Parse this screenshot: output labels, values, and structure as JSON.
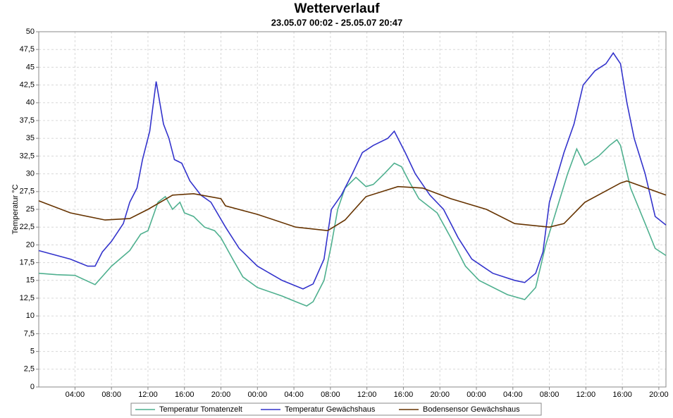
{
  "chart_data": {
    "type": "line",
    "title": "Wetterverlauf",
    "subtitle": "23.05.07 00:02 - 25.05.07 20:47",
    "y_label": "Temperatur  °C",
    "xlim": [
      0.03,
      68.78
    ],
    "ylim": [
      0,
      50
    ],
    "grid": true,
    "legend": "bottom",
    "xticks": [
      {
        "value": 4,
        "label": "04:00"
      },
      {
        "value": 8,
        "label": "08:00"
      },
      {
        "value": 12,
        "label": "12:00"
      },
      {
        "value": 16,
        "label": "16:00"
      },
      {
        "value": 20,
        "label": "20:00"
      },
      {
        "value": 24,
        "label": "00:00"
      },
      {
        "value": 28,
        "label": "04:00"
      },
      {
        "value": 32,
        "label": "08:00"
      },
      {
        "value": 36,
        "label": "12:00"
      },
      {
        "value": 40,
        "label": "16:00"
      },
      {
        "value": 44,
        "label": "20:00"
      },
      {
        "value": 48,
        "label": "00:00"
      },
      {
        "value": 52,
        "label": "04:00"
      },
      {
        "value": 56,
        "label": "08:00"
      },
      {
        "value": 60,
        "label": "12:00"
      },
      {
        "value": 64,
        "label": "16:00"
      },
      {
        "value": 68,
        "label": "20:00"
      }
    ],
    "yticks": [
      0,
      {
        "value": 2.5,
        "label": "2,5"
      },
      5,
      {
        "value": 7.5,
        "label": "7,5"
      },
      10,
      {
        "value": 12.5,
        "label": "12,5"
      },
      15,
      {
        "value": 17.5,
        "label": "17,5"
      },
      20,
      {
        "value": 22.5,
        "label": "22,5"
      },
      25,
      {
        "value": 27.5,
        "label": "27,5"
      },
      30,
      {
        "value": 32.5,
        "label": "32,5"
      },
      35,
      {
        "value": 37.5,
        "label": "37,5"
      },
      40,
      {
        "value": 42.5,
        "label": "42,5"
      },
      45,
      {
        "value": 47.5,
        "label": "47,5"
      },
      50
    ],
    "series": [
      {
        "name": "Temperatur Tomatenzelt",
        "color": "#4fb08f",
        "x": [
          0.03,
          2,
          4,
          6.2,
          8,
          10,
          11.2,
          12,
          13.1,
          13.9,
          14.7,
          15.5,
          16,
          17,
          18.2,
          19.3,
          20,
          21.3,
          22.4,
          24,
          26.7,
          28.2,
          29.4,
          30.1,
          31.3,
          32.1,
          32.8,
          33.6,
          34.8,
          35.9,
          36.7,
          37.9,
          39,
          39.8,
          40.6,
          41.7,
          43.7,
          45.2,
          46.8,
          48.3,
          51.4,
          53.3,
          54.5,
          55.6,
          56.8,
          58,
          59,
          59.9,
          61.4,
          62.6,
          63.4,
          63.8,
          64.9,
          66.5,
          67.6,
          68.78
        ],
        "values": [
          16,
          15.8,
          15.7,
          14.4,
          17,
          19.2,
          21.5,
          22,
          26,
          26.8,
          25,
          26,
          24.5,
          24,
          22.5,
          22,
          21,
          18,
          15.5,
          14,
          12.8,
          12,
          11.4,
          12,
          15,
          20,
          25,
          28,
          29.5,
          28.2,
          28.5,
          30,
          31.5,
          31,
          29,
          26.5,
          24.5,
          21,
          17,
          15,
          13,
          12.3,
          14,
          20,
          25,
          30,
          33.5,
          31.2,
          32.5,
          34,
          34.8,
          34,
          28,
          23,
          19.5,
          18.5
        ]
      },
      {
        "name": "Temperatur Gewächshaus",
        "color": "#3333cc",
        "x": [
          0.03,
          3.5,
          5.4,
          6.2,
          7,
          8,
          9.3,
          10,
          10.8,
          11.4,
          12.2,
          12.9,
          13.7,
          14.3,
          14.9,
          15.7,
          16.6,
          17.8,
          18.9,
          20.5,
          22,
          24,
          26.7,
          29,
          30.1,
          31.3,
          32.1,
          33.2,
          34.4,
          35.5,
          36.7,
          38.3,
          39,
          40.2,
          41.3,
          42.9,
          44.4,
          46,
          47.5,
          49.8,
          52.2,
          53.3,
          54.5,
          55.3,
          56,
          57.6,
          58.7,
          59.7,
          61,
          62.2,
          63,
          63.8,
          64.5,
          65.3,
          66.5,
          67.6,
          68.78
        ],
        "values": [
          19.2,
          18,
          17,
          17,
          19,
          20.5,
          23,
          26,
          28,
          32,
          36,
          43,
          37,
          35,
          32,
          31.5,
          29,
          27,
          26,
          22.5,
          19.5,
          17,
          15,
          13.8,
          14.5,
          18,
          25,
          27,
          30,
          33,
          34,
          35,
          36,
          33,
          30,
          27,
          25,
          21,
          18,
          16,
          15,
          14.7,
          16,
          19,
          26,
          33,
          37,
          42.5,
          44.5,
          45.5,
          47,
          45.5,
          40,
          35,
          30,
          24,
          22.8
        ]
      },
      {
        "name": "Bodensensor  Gewächshaus",
        "color": "#663300",
        "x": [
          0.03,
          3.5,
          7.3,
          10,
          12,
          14.7,
          17,
          20,
          20.5,
          24,
          28.2,
          31.7,
          33.6,
          35.9,
          39.4,
          42.1,
          45.2,
          49.1,
          52.2,
          56,
          57.6,
          59.9,
          63.8,
          64.5,
          68.78
        ],
        "values": [
          26.2,
          24.5,
          23.5,
          23.7,
          25,
          27,
          27.2,
          26.5,
          25.5,
          24.3,
          22.5,
          22,
          23.5,
          26.8,
          28.2,
          28,
          26.5,
          25,
          23,
          22.5,
          23,
          26,
          28.7,
          29,
          27
        ]
      }
    ]
  }
}
